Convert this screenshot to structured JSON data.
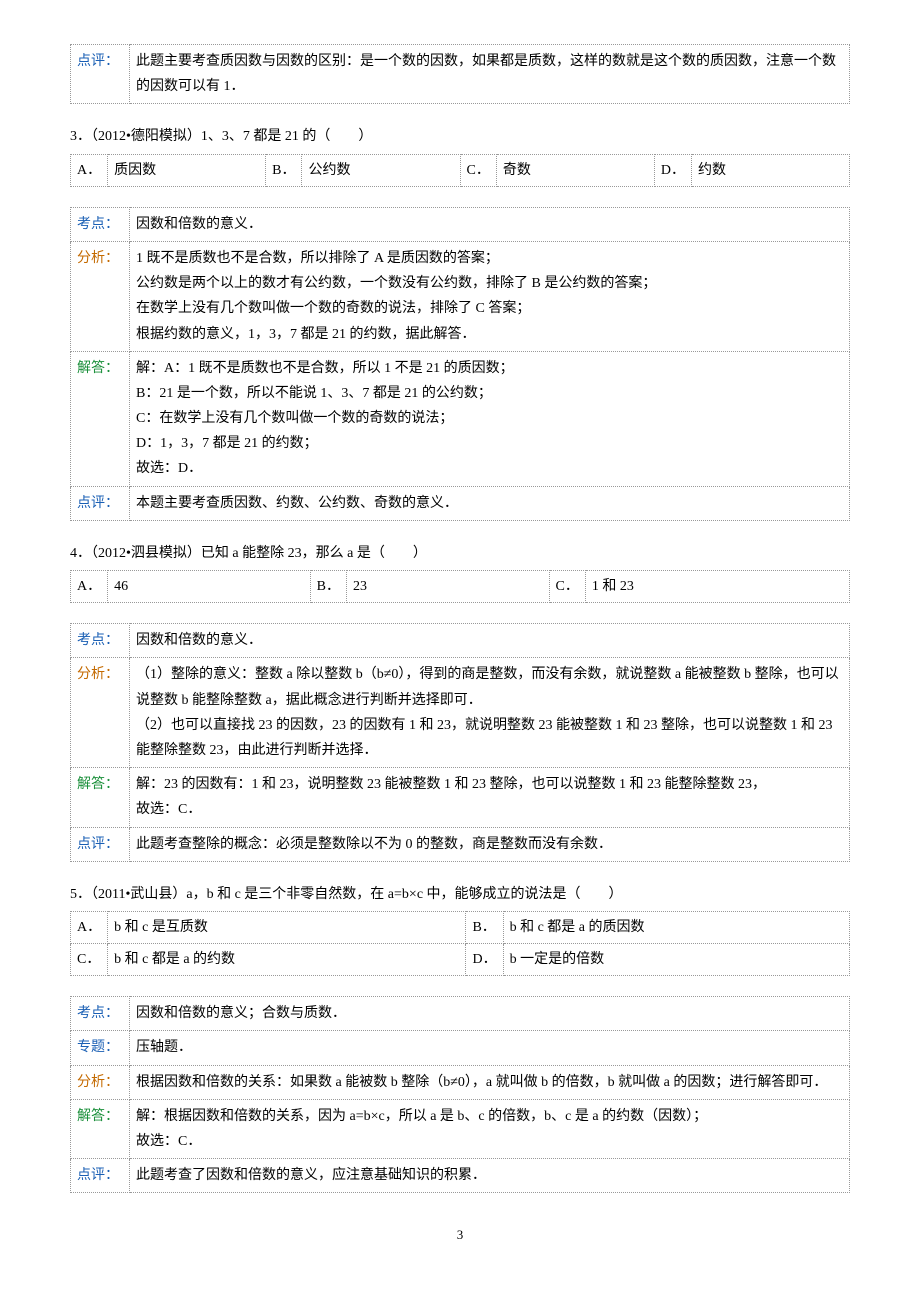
{
  "block1": {
    "dianping_label": "点评：",
    "dianping_text": "此题主要考查质因数与因数的区别：是一个数的因数，如果都是质数，这样的数就是这个数的质因数，注意一个数的因数可以有 1．"
  },
  "q3": {
    "text": "3．（2012•德阳模拟）1、3、7 都是 21 的（　　）",
    "choices": {
      "A": "质因数",
      "B": "公约数",
      "C": "奇数",
      "D": "约数"
    },
    "kaodian_label": "考点：",
    "kaodian_text": "因数和倍数的意义．",
    "fenxi_label": "分析：",
    "fenxi_text": "1 既不是质数也不是合数，所以排除了 A 是质因数的答案；\n公约数是两个以上的数才有公约数，一个数没有公约数，排除了 B 是公约数的答案；\n在数学上没有几个数叫做一个数的奇数的说法，排除了 C 答案；\n根据约数的意义，1，3，7 都是 21 的约数，据此解答．",
    "jieda_label": "解答：",
    "jieda_text": "解：A：1 既不是质数也不是合数，所以 1 不是 21 的质因数；\nB：21 是一个数，所以不能说 1、3、7 都是 21 的公约数；\nC：在数学上没有几个数叫做一个数的奇数的说法；\nD：1，3，7 都是 21 的约数；\n故选：D．",
    "dianping_label": "点评：",
    "dianping_text": "本题主要考查质因数、约数、公约数、奇数的意义．"
  },
  "q4": {
    "text": "4．（2012•泗县模拟）已知 a 能整除 23，那么 a 是（　　）",
    "choices": {
      "A": "46",
      "B": "23",
      "C": "1 和 23"
    },
    "kaodian_label": "考点：",
    "kaodian_text": "因数和倍数的意义．",
    "fenxi_label": "分析：",
    "fenxi_text": "（1）整除的意义：整数 a 除以整数 b（b≠0），得到的商是整数，而没有余数，就说整数 a 能被整数 b 整除，也可以说整数 b 能整除整数 a，据此概念进行判断并选择即可．\n（2）也可以直接找 23 的因数，23 的因数有 1 和 23，就说明整数 23 能被整数 1 和 23 整除，也可以说整数 1 和 23 能整除整数 23，由此进行判断并选择．",
    "jieda_label": "解答：",
    "jieda_text": "解：23 的因数有：1 和 23，说明整数 23 能被整数 1 和 23 整除，也可以说整数 1 和 23 能整除整数 23，\n故选：C．",
    "dianping_label": "点评：",
    "dianping_text": "此题考查整除的概念：必须是整数除以不为 0 的整数，商是整数而没有余数．"
  },
  "q5": {
    "text": "5．（2011•武山县）a，b 和 c 是三个非零自然数，在 a=b×c 中，能够成立的说法是（　　）",
    "choices": {
      "A": "b 和 c 是互质数",
      "B": "b 和 c 都是 a 的质因数",
      "C": "b 和 c 都是 a 的约数",
      "D": "b 一定是的倍数"
    },
    "kaodian_label": "考点：",
    "kaodian_text": "因数和倍数的意义；合数与质数．",
    "zhuanti_label": "专题：",
    "zhuanti_text": "压轴题．",
    "fenxi_label": "分析：",
    "fenxi_text": "根据因数和倍数的关系：如果数 a 能被数 b 整除（b≠0），a 就叫做 b 的倍数，b 就叫做 a 的因数；进行解答即可．",
    "jieda_label": "解答：",
    "jieda_text": "解：根据因数和倍数的关系，因为 a=b×c，所以 a 是 b、c 的倍数，b、c 是 a 的约数（因数）；\n故选：C．",
    "dianping_label": "点评：",
    "dianping_text": "此题考查了因数和倍数的意义，应注意基础知识的积累．"
  },
  "page_number": "3"
}
